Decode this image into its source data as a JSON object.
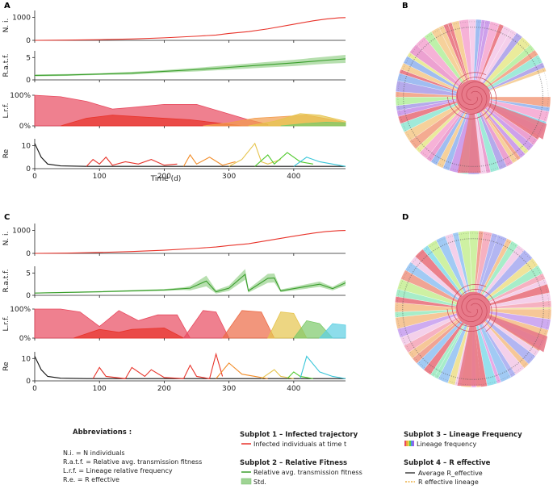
{
  "panels": {
    "A": "A",
    "B": "B",
    "C": "C",
    "D": "D"
  },
  "chart_data": [
    {
      "id": "A",
      "type": "line",
      "xlabel": "Time (d)",
      "xlim": [
        0,
        480
      ],
      "xticks": [
        "0",
        "100",
        "200",
        "300",
        "400"
      ],
      "subplots": [
        {
          "ylabel": "N. i.",
          "yticks": [
            "0",
            "1000"
          ],
          "ylim": [
            0,
            1300
          ],
          "series": [
            {
              "name": "Infected individuals at time t",
              "color": "#e8332a",
              "x": [
                0,
                50,
                100,
                150,
                200,
                250,
                280,
                300,
                330,
                360,
                400,
                430,
                450,
                470,
                480
              ],
              "y": [
                0,
                10,
                30,
                60,
                110,
                180,
                230,
                300,
                380,
                500,
                700,
                850,
                930,
                980,
                990
              ]
            }
          ]
        },
        {
          "ylabel": "R.a.t.f.",
          "yticks": [
            "0",
            "5"
          ],
          "ylim": [
            0,
            6.5
          ],
          "series": [
            {
              "name": "Relative avg. transmission fitness",
              "color": "#3a9e2c",
              "x": [
                0,
                50,
                100,
                150,
                200,
                250,
                300,
                350,
                400,
                450,
                480
              ],
              "y": [
                1.0,
                1.1,
                1.3,
                1.5,
                1.9,
                2.3,
                2.8,
                3.3,
                3.8,
                4.4,
                4.7
              ],
              "std": [
                0.2,
                0.2,
                0.2,
                0.3,
                0.3,
                0.4,
                0.5,
                0.6,
                0.7,
                0.8,
                0.9
              ]
            }
          ]
        },
        {
          "ylabel": "L.r.f.",
          "yticks": [
            "0%",
            "100%"
          ],
          "ylim": [
            0,
            1
          ],
          "lineages": [
            {
              "color": "#e84a5f",
              "x": [
                0,
                40,
                80,
                120,
                150,
                200,
                250,
                290,
                330,
                360
              ],
              "y": [
                1.0,
                0.95,
                0.8,
                0.55,
                0.6,
                0.7,
                0.7,
                0.45,
                0.2,
                0.05
              ]
            },
            {
              "color": "#e8332a",
              "x": [
                40,
                80,
                120,
                160,
                200,
                240,
                280,
                320
              ],
              "y": [
                0.0,
                0.25,
                0.35,
                0.3,
                0.25,
                0.2,
                0.1,
                0.0
              ]
            },
            {
              "color": "#f29b4b",
              "x": [
                260,
                300,
                340,
                380,
                420,
                460,
                480
              ],
              "y": [
                0.0,
                0.1,
                0.25,
                0.3,
                0.35,
                0.2,
                0.1
              ]
            },
            {
              "color": "#e6c44d",
              "x": [
                330,
                370,
                410,
                440,
                470,
                480
              ],
              "y": [
                0.0,
                0.15,
                0.4,
                0.35,
                0.2,
                0.15
              ]
            },
            {
              "color": "#7cc96a",
              "x": [
                380,
                420,
                450,
                480
              ],
              "y": [
                0.0,
                0.08,
                0.12,
                0.1
              ]
            }
          ]
        },
        {
          "ylabel": "Re",
          "yticks": [
            "0",
            "10"
          ],
          "ylim": [
            0,
            13
          ],
          "series": [
            {
              "name": "Average R_effective",
              "color": "#111111",
              "x": [
                0,
                5,
                10,
                20,
                40,
                80,
                150,
                250,
                350,
                480
              ],
              "y": [
                11,
                8,
                5,
                2,
                1.2,
                1.0,
                1.0,
                1.0,
                1.0,
                1.0
              ]
            },
            {
              "name": "R effective lineage",
              "color": "#e8332a",
              "x": [
                80,
                90,
                100,
                110,
                120,
                140,
                160,
                180,
                200,
                220
              ],
              "y": [
                1,
                4,
                2,
                5,
                1.5,
                3,
                2,
                4,
                1.5,
                2
              ]
            },
            {
              "name": "R effective lineage",
              "color": "#f28c28",
              "x": [
                230,
                240,
                250,
                270,
                290,
                310
              ],
              "y": [
                1,
                6,
                2,
                5,
                1.5,
                3
              ]
            },
            {
              "name": "R effective lineage",
              "color": "#e6c44d",
              "x": [
                300,
                320,
                340,
                350,
                360,
                380
              ],
              "y": [
                1,
                4,
                11,
                3,
                2,
                4
              ]
            },
            {
              "name": "R effective lineage",
              "color": "#4fc92c",
              "x": [
                340,
                360,
                370,
                390,
                410,
                430
              ],
              "y": [
                1,
                6,
                2,
                7,
                3,
                2
              ]
            },
            {
              "name": "R effective lineage",
              "color": "#38c6d9",
              "x": [
                400,
                420,
                440,
                460,
                480
              ],
              "y": [
                1,
                5,
                3,
                2,
                1
              ]
            }
          ]
        }
      ]
    },
    {
      "id": "C",
      "type": "line",
      "xlabel": "",
      "xlim": [
        0,
        480
      ],
      "xticks": [
        "0",
        "100",
        "200",
        "300",
        "400"
      ],
      "subplots": [
        {
          "ylabel": "N. i.",
          "yticks": [
            "0",
            "1000"
          ],
          "ylim": [
            0,
            1300
          ],
          "series": [
            {
              "name": "Infected individuals at time t",
              "color": "#e8332a",
              "x": [
                0,
                50,
                100,
                150,
                200,
                250,
                280,
                300,
                330,
                360,
                400,
                430,
                450,
                470,
                480
              ],
              "y": [
                0,
                10,
                40,
                80,
                140,
                220,
                280,
                340,
                420,
                560,
                750,
                880,
                950,
                990,
                1000
              ]
            }
          ]
        },
        {
          "ylabel": "R.a.t.f.",
          "yticks": [
            "0",
            "5"
          ],
          "ylim": [
            0,
            6.5
          ],
          "series": [
            {
              "name": "Relative avg. transmission fitness",
              "color": "#3a9e2c",
              "x": [
                0,
                100,
                200,
                230,
                240,
                265,
                280,
                300,
                325,
                330,
                360,
                370,
                380,
                400,
                420,
                440,
                460,
                480
              ],
              "y": [
                0.5,
                0.8,
                1.2,
                1.5,
                1.6,
                3.2,
                0.8,
                1.6,
                4.7,
                1.0,
                3.8,
                3.9,
                1.0,
                1.5,
                2.0,
                2.5,
                1.5,
                2.8
              ],
              "std": [
                0.1,
                0.15,
                0.2,
                0.3,
                0.5,
                1.2,
                0.4,
                0.6,
                1.2,
                0.4,
                1.0,
                1.0,
                0.3,
                0.4,
                0.5,
                0.6,
                0.4,
                0.6
              ]
            }
          ]
        },
        {
          "ylabel": "L.r.f.",
          "yticks": [
            "0%",
            "100%"
          ],
          "ylim": [
            0,
            1
          ],
          "lineages": [
            {
              "color": "#e84a5f",
              "x": [
                0,
                40,
                70,
                100,
                130,
                160,
                190,
                220,
                240
              ],
              "y": [
                1.0,
                1.0,
                0.9,
                0.4,
                0.95,
                0.6,
                0.8,
                0.8,
                0.0
              ]
            },
            {
              "color": "#e8332a",
              "x": [
                60,
                100,
                130,
                150,
                200,
                230
              ],
              "y": [
                0.0,
                0.3,
                0.2,
                0.3,
                0.35,
                0.0
              ]
            },
            {
              "color": "#e84a5f",
              "x": [
                230,
                260,
                280,
                300
              ],
              "y": [
                0.0,
                0.95,
                0.9,
                0.0
              ]
            },
            {
              "color": "#ec6a45",
              "x": [
                290,
                320,
                350,
                370
              ],
              "y": [
                0.0,
                0.95,
                0.9,
                0.0
              ]
            },
            {
              "color": "#e6c44d",
              "x": [
                360,
                380,
                400,
                420
              ],
              "y": [
                0.0,
                0.9,
                0.85,
                0.0
              ]
            },
            {
              "color": "#7cc96a",
              "x": [
                400,
                420,
                440,
                460
              ],
              "y": [
                0.0,
                0.6,
                0.5,
                0.0
              ]
            },
            {
              "color": "#5ccfe3",
              "x": [
                440,
                460,
                480
              ],
              "y": [
                0.0,
                0.5,
                0.45
              ]
            }
          ]
        },
        {
          "ylabel": "Re",
          "yticks": [
            "0",
            "10"
          ],
          "ylim": [
            0,
            13
          ],
          "series": [
            {
              "name": "Average R_effective",
              "color": "#111111",
              "x": [
                0,
                5,
                10,
                20,
                40,
                80,
                150,
                250,
                350,
                480
              ],
              "y": [
                11,
                8,
                5,
                2,
                1.2,
                1.0,
                1.0,
                1.0,
                1.0,
                1.0
              ]
            },
            {
              "name": "R effective lineage",
              "color": "#e8332a",
              "x": [
                90,
                100,
                110,
                140,
                150,
                170,
                180,
                200,
                230,
                240,
                250,
                270,
                280,
                290
              ],
              "y": [
                1,
                6,
                2,
                1,
                6,
                2,
                5,
                1.5,
                1,
                7,
                2,
                1,
                12,
                2
              ]
            },
            {
              "name": "R effective lineage",
              "color": "#f28c28",
              "x": [
                280,
                300,
                320,
                340,
                360
              ],
              "y": [
                1,
                8,
                3,
                2,
                1
              ]
            },
            {
              "name": "R effective lineage",
              "color": "#e6c44d",
              "x": [
                350,
                370,
                380,
                400
              ],
              "y": [
                1,
                5,
                2,
                1
              ]
            },
            {
              "name": "R effective lineage",
              "color": "#4fc92c",
              "x": [
                390,
                400,
                410,
                430
              ],
              "y": [
                1,
                4,
                2,
                1
              ]
            },
            {
              "name": "R effective lineage",
              "color": "#38c6d9",
              "x": [
                410,
                420,
                440,
                460,
                480
              ],
              "y": [
                1,
                11,
                4,
                2,
                1
              ]
            }
          ]
        }
      ]
    },
    {
      "id": "B",
      "type": "other",
      "description_label": "circular lineage tree",
      "palette": [
        "#f3c7e8",
        "#f4a5d0",
        "#e991c9",
        "#c58fe8",
        "#a89be8",
        "#8fb2ee",
        "#7fd3ea",
        "#8fe6d2",
        "#b3ee9b",
        "#e6e88a",
        "#f5c98a",
        "#f29c7e",
        "#e86b77"
      ]
    },
    {
      "id": "D",
      "type": "other",
      "description_label": "circular lineage tree",
      "palette": [
        "#f5a3b6",
        "#f2c8e6",
        "#e59be0",
        "#c69cee",
        "#a6a9f0",
        "#90c1f2",
        "#84dbea",
        "#98eac0",
        "#c5ef93",
        "#edde88",
        "#f4bd86",
        "#ef9481",
        "#e86b77"
      ]
    }
  ],
  "legend": {
    "abbreviations": {
      "title": "Abbreviations :",
      "items": [
        "N.i.   = N individuals",
        "R.a.t.f. = Relative avg. transmission fitness",
        "L.r.f. = Lineage relative frequency",
        "R.e.  = R effective"
      ]
    },
    "subplot1": {
      "title": "Subplot 1 – Infected trajectory",
      "item": "Infected individuals at time t",
      "color": "#e8332a"
    },
    "subplot2": {
      "title": "Subplot 2 – Relative Fitness",
      "item": "Relative avg. transmission fitness",
      "std_label": "Std.",
      "color": "#3a9e2c"
    },
    "subplot3": {
      "title": "Subplot 3 – Lineage Frequency",
      "item": "Lineage frequency"
    },
    "subplot4": {
      "title": "Subplot 4 – R effective",
      "item_avg": "Average R_effective",
      "item_lineage": "R effective lineage"
    }
  }
}
